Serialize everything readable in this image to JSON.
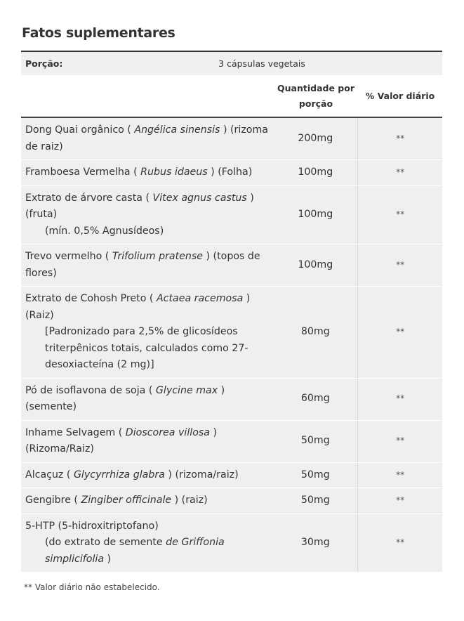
{
  "title": "Fatos suplementares",
  "serving": {
    "label": "Porção:",
    "value": "3 cápsulas vegetais"
  },
  "header": {
    "amount": "Quantidade por porção",
    "dv": "% Valor diário"
  },
  "rows": [
    {
      "main": [
        {
          "t": "Dong Quai orgânico ( "
        },
        {
          "t": "Angélica sinensis",
          "i": true
        },
        {
          "t": " ) (rizoma de raiz)"
        }
      ],
      "amount": "200mg",
      "dv": "**"
    },
    {
      "main": [
        {
          "t": "Framboesa Vermelha ( "
        },
        {
          "t": "Rubus idaeus",
          "i": true
        },
        {
          "t": " ) (Folha)"
        }
      ],
      "amount": "100mg",
      "dv": "**"
    },
    {
      "main": [
        {
          "t": "Extrato de árvore casta ( "
        },
        {
          "t": "Vitex agnus castus",
          "i": true
        },
        {
          "t": " ) (fruta)"
        }
      ],
      "sub": [
        {
          "t": "(mín. 0,5% Agnusídeos)"
        }
      ],
      "amount": "100mg",
      "dv": "**"
    },
    {
      "main": [
        {
          "t": "Trevo vermelho ( "
        },
        {
          "t": "Trifolium pratense",
          "i": true
        },
        {
          "t": " ) (topos de flores)"
        }
      ],
      "amount": "100mg",
      "dv": "**"
    },
    {
      "main": [
        {
          "t": "Extrato de Cohosh Preto ( "
        },
        {
          "t": "Actaea racemosa",
          "i": true
        },
        {
          "t": " ) (Raiz)"
        }
      ],
      "sub": [
        {
          "t": "[Padronizado para 2,5% de glicosídeos triterpênicos totais, calculados como 27-desoxiacteína (2 mg)]"
        }
      ],
      "amount": "80mg",
      "dv": "**"
    },
    {
      "main": [
        {
          "t": "Pó de isoflavona de soja ( "
        },
        {
          "t": "Glycine max",
          "i": true
        },
        {
          "t": " ) (semente)"
        }
      ],
      "amount": "60mg",
      "dv": "**"
    },
    {
      "main": [
        {
          "t": "Inhame Selvagem ( "
        },
        {
          "t": "Dioscorea villosa",
          "i": true
        },
        {
          "t": " ) (Rizoma/Raiz)"
        }
      ],
      "amount": "50mg",
      "dv": "**"
    },
    {
      "main": [
        {
          "t": "Alcaçuz ( "
        },
        {
          "t": "Glycyrrhiza glabra",
          "i": true
        },
        {
          "t": " ) (rizoma/raiz)"
        }
      ],
      "amount": "50mg",
      "dv": "**"
    },
    {
      "main": [
        {
          "t": "Gengibre ( "
        },
        {
          "t": "Zingiber officinale",
          "i": true
        },
        {
          "t": " ) (raiz)"
        }
      ],
      "amount": "50mg",
      "dv": "**"
    },
    {
      "main": [
        {
          "t": "5-HTP (5-hidroxitriptofano)"
        }
      ],
      "sub": [
        {
          "t": "(do extrato de semente "
        },
        {
          "t": "de Griffonia simplicifolia",
          "i": true
        },
        {
          "t": " )"
        }
      ],
      "amount": "30mg",
      "dv": "**"
    }
  ],
  "footnote": "** Valor diário não estabelecido."
}
